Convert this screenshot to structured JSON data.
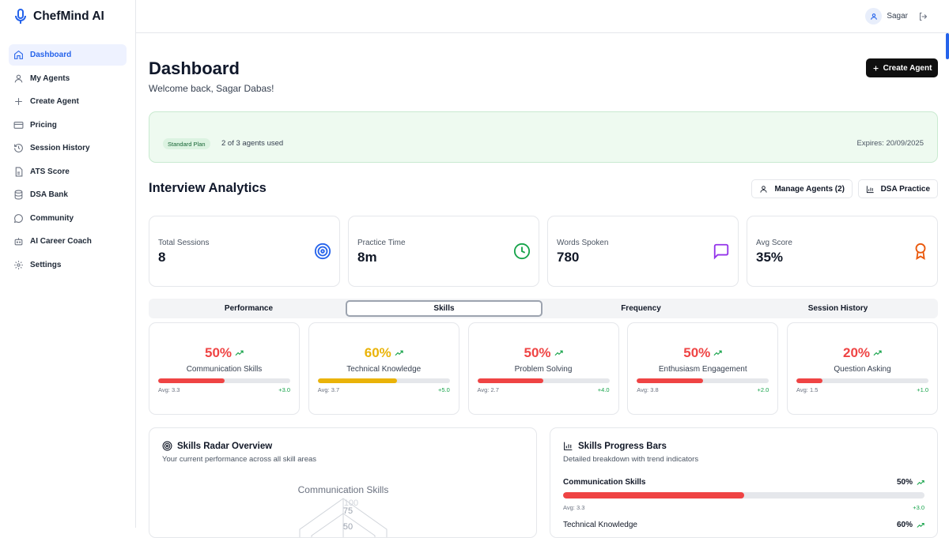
{
  "app": {
    "name": "ChefMind AI"
  },
  "sidebar": {
    "items": [
      {
        "label": "Dashboard",
        "icon": "home-icon"
      },
      {
        "label": "My Agents",
        "icon": "user-icon"
      },
      {
        "label": "Create Agent",
        "icon": "plus-icon"
      },
      {
        "label": "Pricing",
        "icon": "credit-card-icon"
      },
      {
        "label": "Session History",
        "icon": "history-icon"
      },
      {
        "label": "ATS Score",
        "icon": "file-icon"
      },
      {
        "label": "DSA Bank",
        "icon": "database-icon"
      },
      {
        "label": "Community",
        "icon": "message-circle-icon"
      },
      {
        "label": "AI Career Coach",
        "icon": "bot-icon"
      },
      {
        "label": "Settings",
        "icon": "gear-icon"
      }
    ]
  },
  "topbar": {
    "username": "Sagar"
  },
  "header": {
    "title": "Dashboard",
    "welcome": "Welcome back, Sagar Dabas!",
    "create_label": "Create Agent"
  },
  "plan": {
    "badge": "Standard Plan",
    "usage": "2 of 3 agents used",
    "expires": "Expires: 20/09/2025"
  },
  "analytics": {
    "title": "Interview Analytics",
    "manage_label": "Manage Agents (2)",
    "dsa_label": "DSA Practice"
  },
  "stats": [
    {
      "label": "Total Sessions",
      "value": "8",
      "icon": "target-icon",
      "color": "#2563eb"
    },
    {
      "label": "Practice Time",
      "value": "8m",
      "icon": "clock-icon",
      "color": "#16a34a"
    },
    {
      "label": "Words Spoken",
      "value": "780",
      "icon": "message-square-icon",
      "color": "#9333ea"
    },
    {
      "label": "Avg Score",
      "value": "35%",
      "icon": "award-icon",
      "color": "#ea580c"
    }
  ],
  "tabs": [
    "Performance",
    "Skills",
    "Frequency",
    "Session History"
  ],
  "skills": [
    {
      "pct": "50%",
      "value": 0.5,
      "name": "Communication Skills",
      "avg": "Avg: 3.3",
      "trend": "+3.0",
      "color": "#ef4444"
    },
    {
      "pct": "60%",
      "value": 0.6,
      "name": "Technical Knowledge",
      "avg": "Avg: 3.7",
      "trend": "+5.0",
      "color": "#eab308"
    },
    {
      "pct": "50%",
      "value": 0.5,
      "name": "Problem Solving",
      "avg": "Avg: 2.7",
      "trend": "+4.0",
      "color": "#ef4444"
    },
    {
      "pct": "50%",
      "value": 0.5,
      "name": "Enthusiasm Engagement",
      "avg": "Avg: 3.8",
      "trend": "+2.0",
      "color": "#ef4444"
    },
    {
      "pct": "20%",
      "value": 0.2,
      "name": "Question Asking",
      "avg": "Avg: 1.5",
      "trend": "+1.0",
      "color": "#ef4444"
    }
  ],
  "radar": {
    "title": "Skills Radar Overview",
    "subtitle": "Your current performance across all skill areas",
    "axis_label": "Communication Skills",
    "ticks": [
      "100",
      "75",
      "50"
    ]
  },
  "progress": {
    "title": "Skills Progress Bars",
    "subtitle": "Detailed breakdown with trend indicators",
    "items": [
      {
        "label": "Communication Skills",
        "pct": "50%",
        "value": 0.5,
        "avg": "Avg: 3.3",
        "trend": "+3.0"
      },
      {
        "label": "Technical Knowledge",
        "pct": "60%",
        "value": 0.6
      }
    ]
  }
}
